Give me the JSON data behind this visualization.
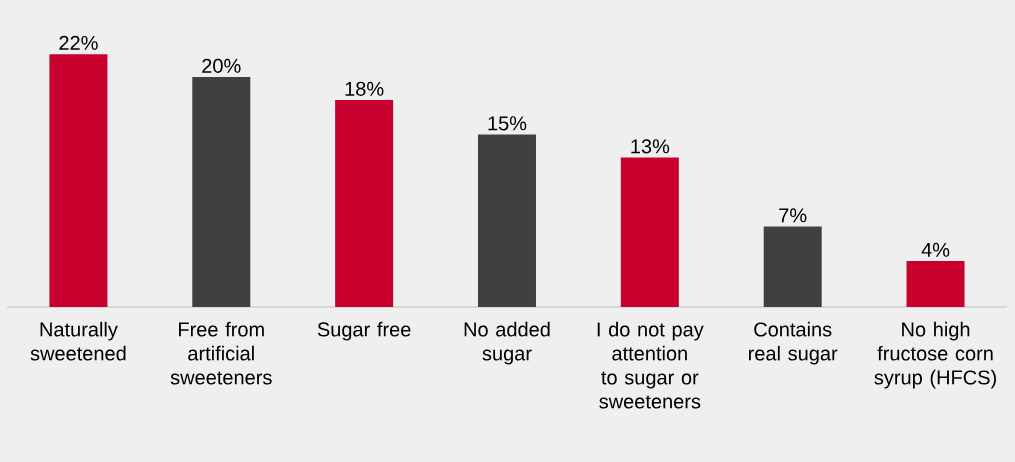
{
  "chart_data": {
    "type": "bar",
    "categories": [
      "Naturally sweetened",
      "Free from artificial sweeteners",
      "Sugar free",
      "No added sugar",
      "I do not pay attention to sugar or sweeteners",
      "Contains real sugar",
      "No high fructose corn syrup (HFCS)"
    ],
    "values": [
      22,
      20,
      18,
      15,
      13,
      7,
      4
    ],
    "value_labels": [
      "22%",
      "20%",
      "18%",
      "15%",
      "13%",
      "7%",
      "4%"
    ],
    "colors": [
      "#c8002d",
      "#404040",
      "#c8002d",
      "#404040",
      "#c8002d",
      "#404040",
      "#c8002d"
    ],
    "orientation": "vertical"
  }
}
